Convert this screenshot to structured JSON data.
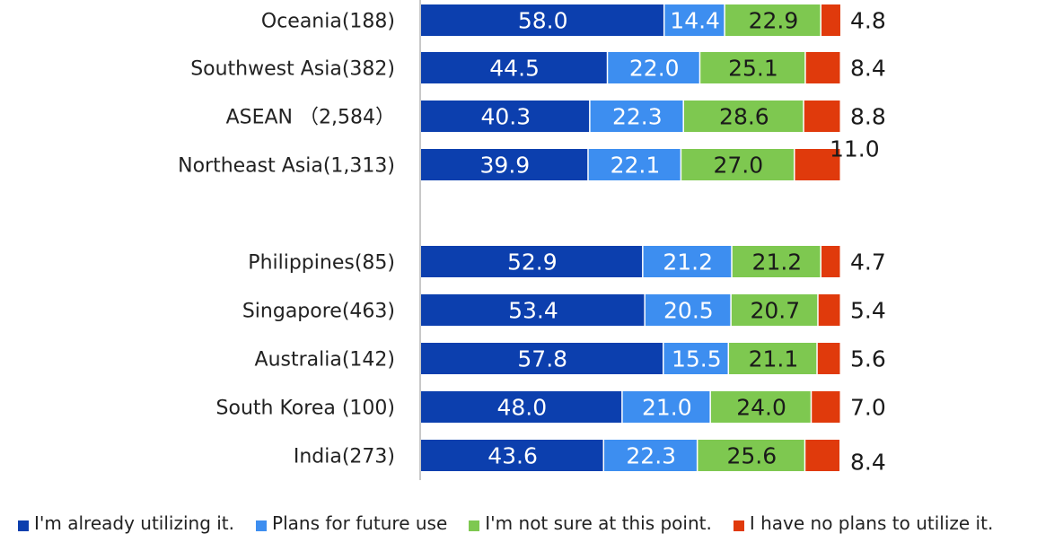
{
  "chart_data": {
    "type": "bar",
    "orientation": "horizontal",
    "stacked": true,
    "xlim": [
      0,
      100
    ],
    "categories": [
      "Oceania(188)",
      "Southwest Asia(382)",
      "ASEAN （2,584）",
      "Northeast Asia(1,313)",
      "Philippines(85)",
      "Singapore(463)",
      "Australia(142)",
      "South Korea (100)",
      "India(273)"
    ],
    "series": [
      {
        "name": "I'm already utilizing it.",
        "color": "#0c3fae",
        "values": [
          58.0,
          44.5,
          40.3,
          39.9,
          52.9,
          53.4,
          57.8,
          48.0,
          43.6
        ]
      },
      {
        "name": "Plans for future use",
        "color": "#3d8ef0",
        "values": [
          14.4,
          22.0,
          22.3,
          22.1,
          21.2,
          20.5,
          15.5,
          21.0,
          22.3
        ]
      },
      {
        "name": "I'm not sure at this point.",
        "color": "#7ec850",
        "values": [
          22.9,
          25.1,
          28.6,
          27.0,
          21.2,
          20.7,
          21.1,
          24.0,
          25.6
        ]
      },
      {
        "name": "I have no plans to utilize it.",
        "color": "#e03a0c",
        "values": [
          4.8,
          8.4,
          8.8,
          11.0,
          4.7,
          5.4,
          5.6,
          7.0,
          8.4
        ]
      }
    ],
    "labels": {
      "segments": [
        [
          "58.0",
          "14.4",
          "22.9"
        ],
        [
          "44.5",
          "22.0",
          "25.1"
        ],
        [
          "40.3",
          "22.3",
          "28.6"
        ],
        [
          "39.9",
          "22.1",
          "27.0"
        ],
        [
          "52.9",
          "21.2",
          "21.2"
        ],
        [
          "53.4",
          "20.5",
          "20.7"
        ],
        [
          "57.8",
          "15.5",
          "21.1"
        ],
        [
          "48.0",
          "21.0",
          "24.0"
        ],
        [
          "43.6",
          "22.3",
          "25.6"
        ]
      ],
      "last": [
        "4.8",
        "8.4",
        "8.8",
        "11.0",
        "4.7",
        "5.4",
        "5.6",
        "7.0",
        "8.4"
      ]
    },
    "legend_position": "bottom",
    "grid": false,
    "title": "",
    "xlabel": "",
    "ylabel": ""
  }
}
